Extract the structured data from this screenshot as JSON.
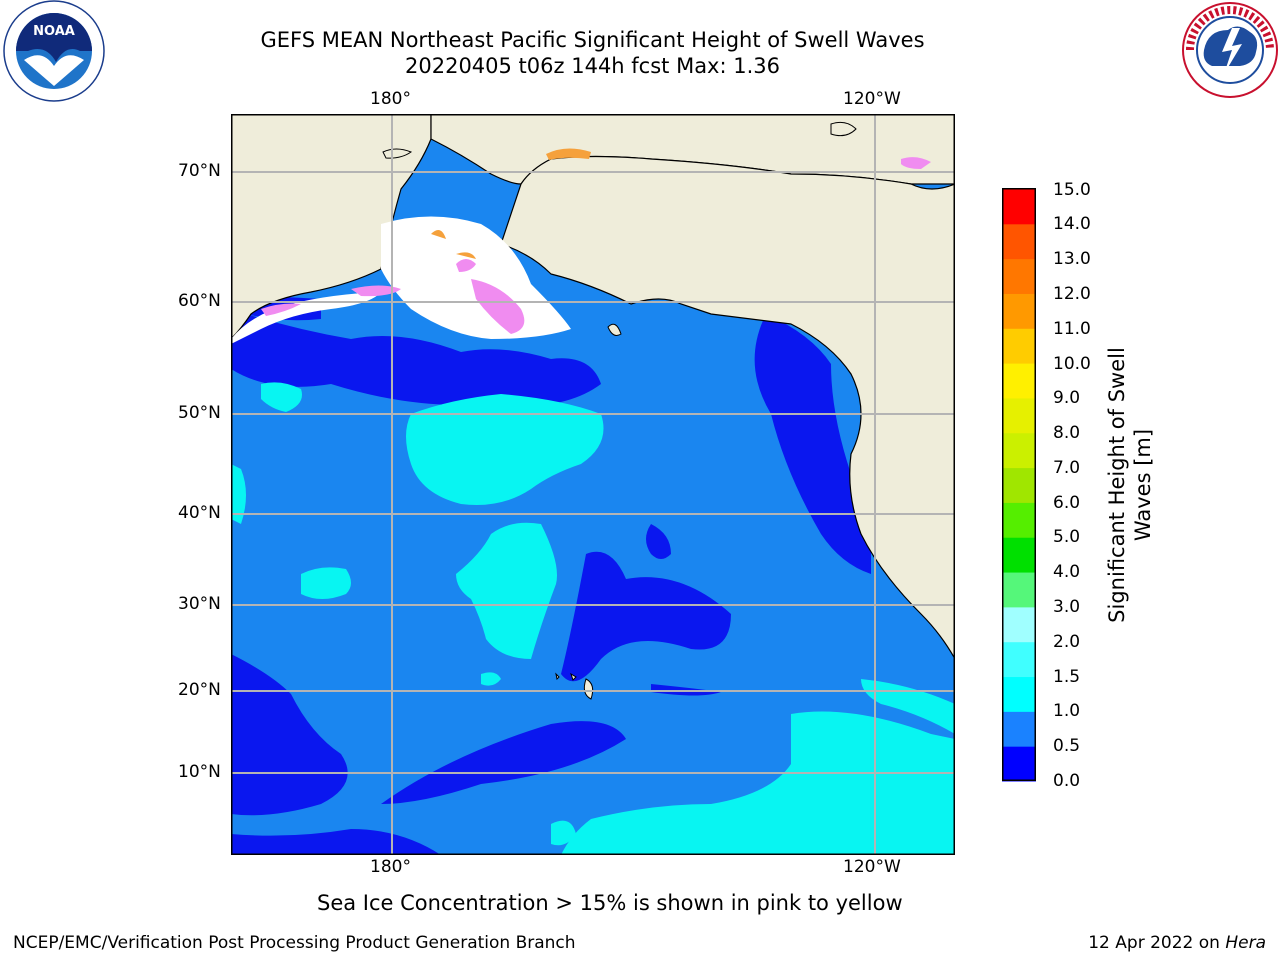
{
  "header": {
    "title_line1": "GEFS MEAN Northeast Pacific Significant Height of Swell Waves",
    "title_line2": "20220405 t06z 144h fcst   Max: 1.36"
  },
  "logos": {
    "left": {
      "name": "NOAA",
      "ring_text": "NATIONAL OCEANIC AND ATMOSPHERIC ADMINISTRATION · U.S. DEPARTMENT OF COMMERCE"
    },
    "right": {
      "name": "NATIONAL WEATHER SERVICE"
    }
  },
  "map": {
    "lon_top": [
      "180°",
      "120°W"
    ],
    "lon_bottom": [
      "180°",
      "120°W"
    ],
    "lat_labels": [
      "70°N",
      "60°N",
      "50°N",
      "40°N",
      "30°N",
      "20°N",
      "10°N"
    ],
    "colors": {
      "land": "#efedda",
      "ocean_mid": "#1a86f0",
      "ocean_low": "#0a17ef",
      "ocean_high": "#08f5f2",
      "ice_pink": "#f08cf0",
      "ice_orange": "#f5a13c",
      "grid": "#b4b4b4"
    }
  },
  "colorbar": {
    "label": "Significant Height of Swell Waves [m]",
    "ticks": [
      "15.0",
      "14.0",
      "13.0",
      "12.0",
      "11.0",
      "10.0",
      "9.0",
      "8.0",
      "7.0",
      "6.0",
      "5.0",
      "4.0",
      "3.0",
      "2.0",
      "1.5",
      "1.0",
      "0.5",
      "0.0"
    ],
    "colors": [
      "#0000ff",
      "#1a82ff",
      "#00ffff",
      "#40ffff",
      "#a0ffff",
      "#55f77a",
      "#00e000",
      "#55ee00",
      "#a0e600",
      "#cbf000",
      "#e6f000",
      "#fff000",
      "#ffcc00",
      "#ff9900",
      "#ff7700",
      "#ff5500",
      "#ff0000"
    ]
  },
  "annotation": "Sea Ice Concentration > 15% is shown in pink to yellow",
  "footer": {
    "left": "NCEP/EMC/Verification Post Processing Product Generation Branch",
    "right_date": "12 Apr 2022 on ",
    "right_host": "Hera"
  }
}
